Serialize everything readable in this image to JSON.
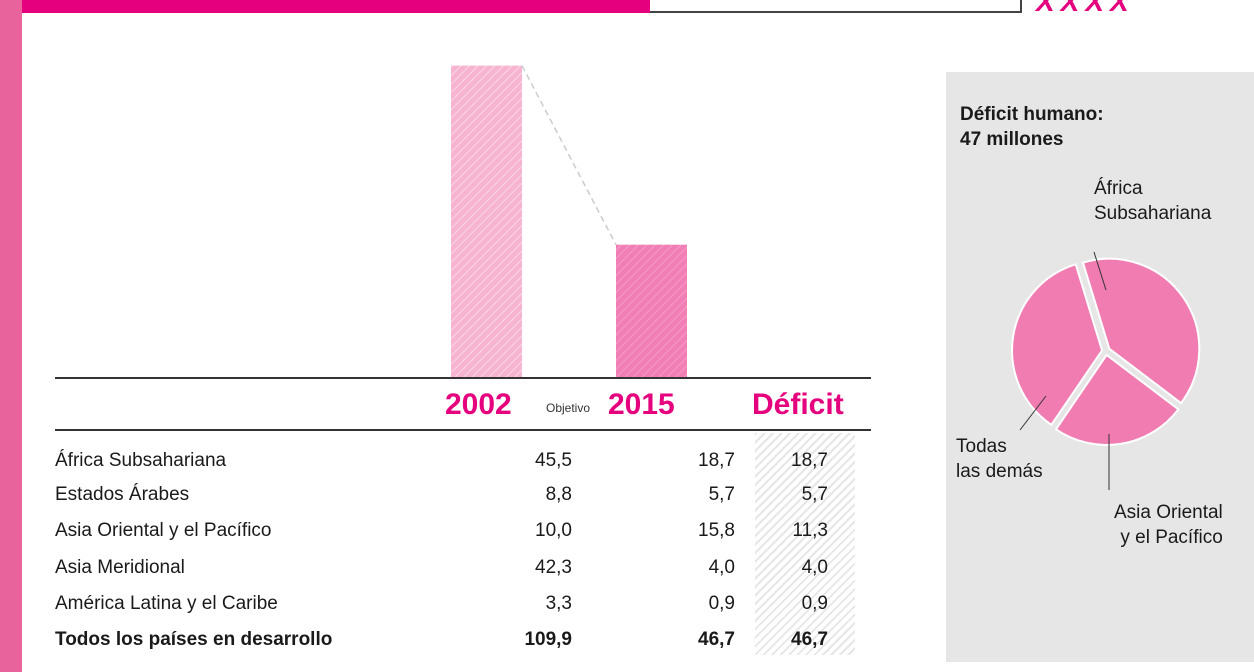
{
  "colors": {
    "accent": "#e5007e",
    "bar_2002": "#f6b4d0",
    "bar_2015": "#f17fb5",
    "pie_fill": "#f07cb2",
    "panel": "#e6e6e6"
  },
  "header_marks": "XXXX",
  "chart_data": [
    {
      "type": "bar",
      "title": "",
      "categories": [
        "2002",
        "2015"
      ],
      "series": [
        {
          "values": [
            109.9,
            46.7
          ]
        }
      ],
      "ylim": [
        0,
        120
      ],
      "grid": false
    },
    {
      "type": "table",
      "columns": {
        "year1": "2002",
        "objetivo": "Objetivo",
        "year2": "2015",
        "deficit": "Déficit"
      },
      "rows": [
        {
          "name": "África Subsahariana",
          "v2002": "45,5",
          "v2015": "18,7",
          "deficit": "18,7"
        },
        {
          "name": "Estados Árabes",
          "v2002": "8,8",
          "v2015": "5,7",
          "deficit": "5,7"
        },
        {
          "name": "Asia Oriental y el Pacífico",
          "v2002": "10,0",
          "v2015": "15,8",
          "deficit": "11,3"
        },
        {
          "name": "Asia Meridional",
          "v2002": "42,3",
          "v2015": "4,0",
          "deficit": "4,0"
        },
        {
          "name": "América Latina y el Caribe",
          "v2002": "3,3",
          "v2015": "0,9",
          "deficit": "0,9"
        },
        {
          "name": "Todos los países en desarrollo",
          "v2002": "109,9",
          "v2015": "46,7",
          "deficit": "46,7",
          "bold": true
        }
      ]
    },
    {
      "type": "pie",
      "title_line1": "Déficit humano:",
      "title_line2": "47 millones",
      "slices": [
        {
          "label_line1": "África",
          "label_line2": "Subsahariana",
          "value": 18.7
        },
        {
          "label_line1": "Asia Oriental",
          "label_line2": "y el Pacífico",
          "value": 11.3
        },
        {
          "label_line1": "Todas",
          "label_line2": "las demás",
          "value": 16.7
        }
      ]
    }
  ]
}
